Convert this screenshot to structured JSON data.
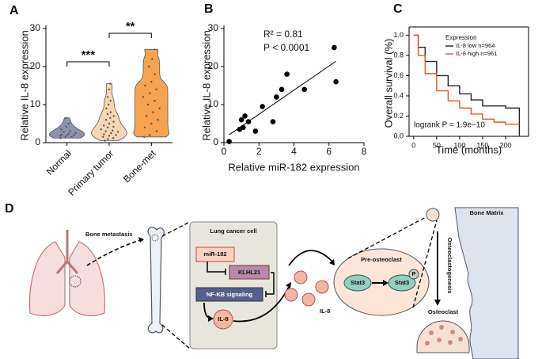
{
  "chart_data": [
    {
      "type": "violin",
      "label": "A",
      "ylabel": "Relative IL-8  expression",
      "categories": [
        "Normal",
        "Primary tumor",
        "Bone-met"
      ],
      "colors": [
        "#8e93ad",
        "#f8d6b4",
        "#f7a34f"
      ],
      "values": [
        [
          1.2,
          1.5,
          1.6,
          1.8,
          2,
          2,
          2.1,
          2.3,
          2.5,
          2.8,
          3,
          3.5,
          4.2,
          5,
          6.5
        ],
        [
          0.5,
          1,
          1.2,
          1.5,
          1.8,
          2,
          2.2,
          2.5,
          2.8,
          3,
          3.2,
          3.5,
          4,
          4.2,
          4.5,
          5,
          5.5,
          6,
          6.5,
          7,
          7.5,
          8,
          9,
          10,
          11,
          12,
          14,
          15.5
        ],
        [
          1.5,
          2,
          3,
          4,
          5,
          6,
          7,
          8,
          9,
          10,
          11,
          12,
          13,
          14,
          15,
          16,
          18,
          20,
          22,
          24.5
        ]
      ],
      "significance": [
        "***",
        "**"
      ],
      "ylim": [
        0,
        30
      ],
      "yticks": [
        0,
        10,
        20,
        30
      ]
    },
    {
      "type": "scatter",
      "label": "B",
      "xlabel": "Relative miR-182 expression",
      "ylabel": "Relative IL-8  expression",
      "annotations": [
        "R² = 0.81",
        "P < 0.0001"
      ],
      "color": "#000000",
      "fit_line": true,
      "x": [
        0.3,
        0.9,
        1.0,
        1.1,
        1.2,
        1.4,
        1.8,
        2.2,
        2.8,
        3.0,
        3.3,
        3.6,
        4.6,
        6.3,
        6.4
      ],
      "values": [
        0.3,
        3.5,
        6,
        4,
        7,
        5.5,
        3,
        9.5,
        5.5,
        12,
        14,
        18,
        14,
        25,
        16
      ],
      "xlim": [
        0,
        8
      ],
      "xticks": [
        0,
        2,
        4,
        6,
        8
      ],
      "ylim": [
        0,
        30
      ],
      "yticks": [
        0,
        10,
        20,
        30
      ]
    },
    {
      "type": "line",
      "step": true,
      "label": "C",
      "xlabel": "Time (months)",
      "ylabel": "Overall survival (%)",
      "legend_title": "Expression",
      "legend": "upper right",
      "annotation": "logrank P = 1.9e−10",
      "x": [
        0,
        10,
        25,
        50,
        75,
        100,
        125,
        150,
        175,
        200,
        230
      ],
      "series": [
        {
          "name": "IL-8 low  n=964",
          "color": "#222222",
          "values": [
            1,
            0.88,
            0.74,
            0.6,
            0.5,
            0.42,
            0.36,
            0.3,
            0.3,
            0.28,
            0.0
          ]
        },
        {
          "name": "IL-8 high  n=961",
          "color": "#e8532a",
          "values": [
            1,
            0.8,
            0.62,
            0.45,
            0.35,
            0.28,
            0.22,
            0.17,
            0.14,
            0.12,
            0.12
          ]
        }
      ],
      "xlim": [
        -10,
        250
      ],
      "xticks": [
        0,
        50,
        100,
        150,
        200
      ],
      "ylim": [
        0,
        1.05
      ],
      "yticks": [
        {
          "value": 0,
          "label": "0.0"
        },
        0.2,
        0.4,
        0.6,
        0.8,
        {
          "value": 1,
          "label": "1.0"
        }
      ]
    }
  ],
  "diagram": {
    "label": "D",
    "bone_metastasis": "Bone metastasis",
    "lung_cancer_cell": "Lung cancer cell",
    "mir182": "miR-182",
    "klhl21": "KLHL21",
    "nfkb": "NF-KB signaling",
    "il8_cell": "IL-8",
    "il8_secreted": "IL-8",
    "pre_osteoclast": "Pre-osteoclast",
    "stat3": "Stat3",
    "stat3_p": "Stat3",
    "phospho": "P",
    "bone_matrix": "Bone Matrix",
    "osteoclastogenesis": "Osteoclastogenesis",
    "osteoclast": "Osteoclast"
  }
}
